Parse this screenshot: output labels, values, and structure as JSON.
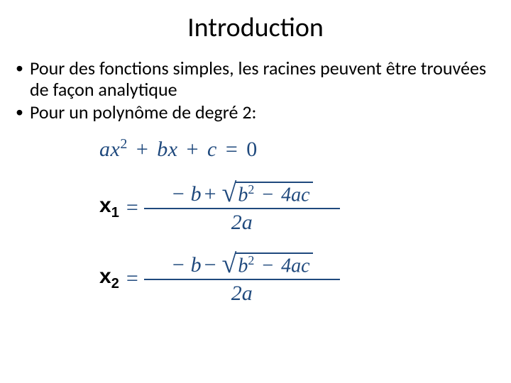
{
  "title": "Introduction",
  "bullets": [
    "Pour des fonctions simples, les racines peuvent être trouvées de façon analytique",
    "Pour un polynôme de degré 2:"
  ],
  "math": {
    "color": "#1f497d",
    "lhs_color": "#000000",
    "eq_quadratic": {
      "a": "a",
      "x": "x",
      "exp": "2",
      "b": "b",
      "c": "c",
      "zero": "0"
    },
    "root1": {
      "label_x": "x",
      "label_sub": "1",
      "minus_b": "− b",
      "sign": "+",
      "b": "b",
      "b_exp": "2",
      "minus": "−",
      "four_ac": "4ac",
      "denom": "2a"
    },
    "root2": {
      "label_x": "x",
      "label_sub": "2",
      "minus_b": "− b",
      "sign": "−",
      "b": "b",
      "b_exp": "2",
      "minus": "−",
      "four_ac": "4ac",
      "denom": "2a"
    }
  },
  "style": {
    "title_fontsize": 38,
    "body_fontsize": 26,
    "math_fontsize": 30,
    "background": "#ffffff",
    "text_color": "#000000"
  }
}
